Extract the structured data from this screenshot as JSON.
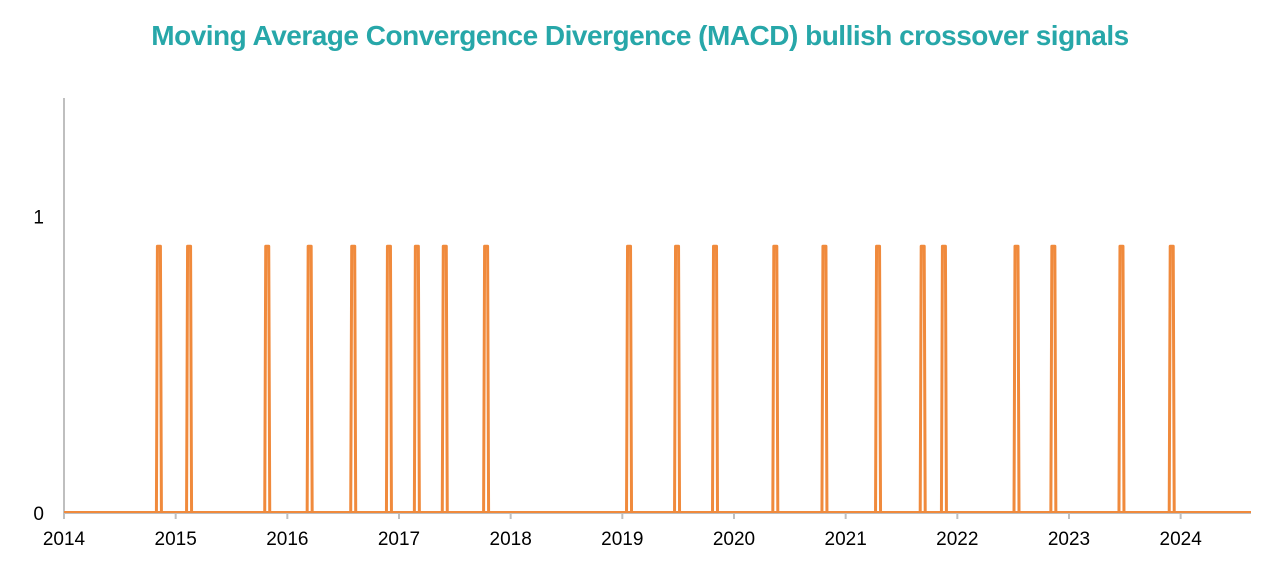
{
  "colors": {
    "title": "#27a7a9",
    "series": "#f08a3c",
    "axis": "#bfbfbf"
  },
  "chart_data": {
    "type": "line",
    "title": "Moving Average Convergence Divergence (MACD) bullish crossover signals",
    "xlabel": "",
    "ylabel": "",
    "xlim": [
      2014.0,
      2024.63
    ],
    "ylim": [
      0,
      1.4
    ],
    "x_ticks": [
      "2014",
      "2015",
      "2016",
      "2017",
      "2018",
      "2019",
      "2020",
      "2021",
      "2022",
      "2023",
      "2024"
    ],
    "x_tick_values": [
      2014,
      2015,
      2016,
      2017,
      2018,
      2019,
      2020,
      2021,
      2022,
      2023,
      2024
    ],
    "y_ticks": [
      "0",
      "1"
    ],
    "y_tick_values": [
      0,
      1
    ],
    "grid": false,
    "legend": "none",
    "series": [
      {
        "signal_value": 0.9,
        "signal_x": [
          2014.85,
          2015.12,
          2015.82,
          2016.2,
          2016.59,
          2016.91,
          2017.16,
          2017.41,
          2017.78,
          2019.06,
          2019.49,
          2019.83,
          2020.37,
          2020.81,
          2021.29,
          2021.69,
          2021.88,
          2022.53,
          2022.86,
          2023.47,
          2023.92
        ]
      }
    ]
  }
}
